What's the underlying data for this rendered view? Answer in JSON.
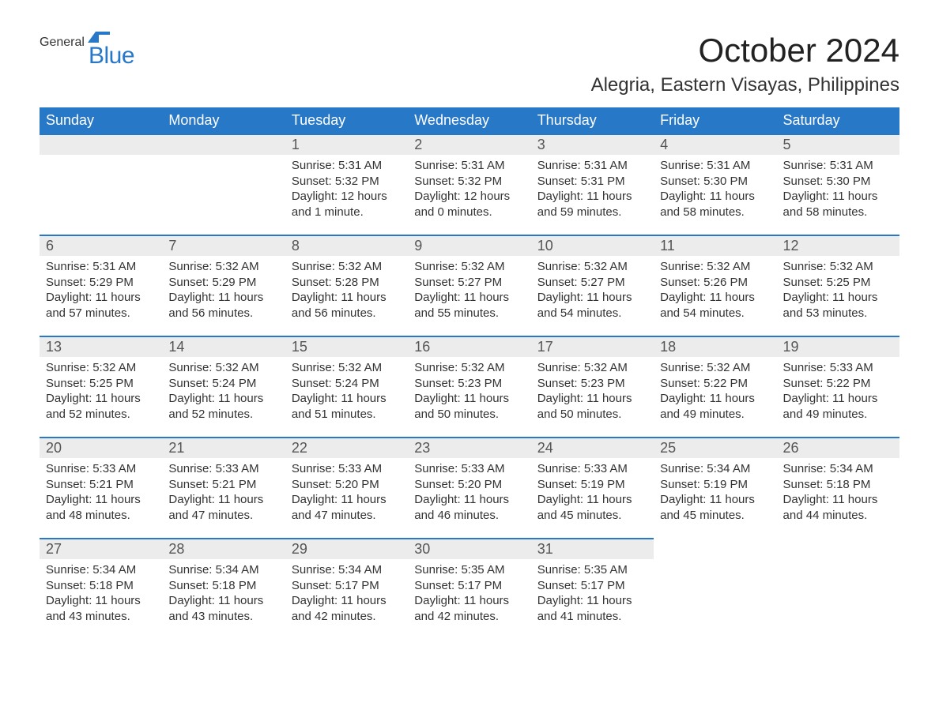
{
  "logo": {
    "line1": "General",
    "line2": "Blue",
    "flag_color": "#2878c8"
  },
  "title": "October 2024",
  "subtitle": "Alegria, Eastern Visayas, Philippines",
  "colors": {
    "header_bg": "#2878c8",
    "header_text": "#ffffff",
    "daynum_bg": "#ececec",
    "daynum_border": "#2878c8",
    "body_text": "#333333",
    "page_bg": "#ffffff"
  },
  "day_headers": [
    "Sunday",
    "Monday",
    "Tuesday",
    "Wednesday",
    "Thursday",
    "Friday",
    "Saturday"
  ],
  "weeks": [
    [
      {
        "blank": true
      },
      {
        "blank": true
      },
      {
        "num": "1",
        "sunrise": "Sunrise: 5:31 AM",
        "sunset": "Sunset: 5:32 PM",
        "daylight1": "Daylight: 12 hours",
        "daylight2": "and 1 minute."
      },
      {
        "num": "2",
        "sunrise": "Sunrise: 5:31 AM",
        "sunset": "Sunset: 5:32 PM",
        "daylight1": "Daylight: 12 hours",
        "daylight2": "and 0 minutes."
      },
      {
        "num": "3",
        "sunrise": "Sunrise: 5:31 AM",
        "sunset": "Sunset: 5:31 PM",
        "daylight1": "Daylight: 11 hours",
        "daylight2": "and 59 minutes."
      },
      {
        "num": "4",
        "sunrise": "Sunrise: 5:31 AM",
        "sunset": "Sunset: 5:30 PM",
        "daylight1": "Daylight: 11 hours",
        "daylight2": "and 58 minutes."
      },
      {
        "num": "5",
        "sunrise": "Sunrise: 5:31 AM",
        "sunset": "Sunset: 5:30 PM",
        "daylight1": "Daylight: 11 hours",
        "daylight2": "and 58 minutes."
      }
    ],
    [
      {
        "num": "6",
        "sunrise": "Sunrise: 5:31 AM",
        "sunset": "Sunset: 5:29 PM",
        "daylight1": "Daylight: 11 hours",
        "daylight2": "and 57 minutes."
      },
      {
        "num": "7",
        "sunrise": "Sunrise: 5:32 AM",
        "sunset": "Sunset: 5:29 PM",
        "daylight1": "Daylight: 11 hours",
        "daylight2": "and 56 minutes."
      },
      {
        "num": "8",
        "sunrise": "Sunrise: 5:32 AM",
        "sunset": "Sunset: 5:28 PM",
        "daylight1": "Daylight: 11 hours",
        "daylight2": "and 56 minutes."
      },
      {
        "num": "9",
        "sunrise": "Sunrise: 5:32 AM",
        "sunset": "Sunset: 5:27 PM",
        "daylight1": "Daylight: 11 hours",
        "daylight2": "and 55 minutes."
      },
      {
        "num": "10",
        "sunrise": "Sunrise: 5:32 AM",
        "sunset": "Sunset: 5:27 PM",
        "daylight1": "Daylight: 11 hours",
        "daylight2": "and 54 minutes."
      },
      {
        "num": "11",
        "sunrise": "Sunrise: 5:32 AM",
        "sunset": "Sunset: 5:26 PM",
        "daylight1": "Daylight: 11 hours",
        "daylight2": "and 54 minutes."
      },
      {
        "num": "12",
        "sunrise": "Sunrise: 5:32 AM",
        "sunset": "Sunset: 5:25 PM",
        "daylight1": "Daylight: 11 hours",
        "daylight2": "and 53 minutes."
      }
    ],
    [
      {
        "num": "13",
        "sunrise": "Sunrise: 5:32 AM",
        "sunset": "Sunset: 5:25 PM",
        "daylight1": "Daylight: 11 hours",
        "daylight2": "and 52 minutes."
      },
      {
        "num": "14",
        "sunrise": "Sunrise: 5:32 AM",
        "sunset": "Sunset: 5:24 PM",
        "daylight1": "Daylight: 11 hours",
        "daylight2": "and 52 minutes."
      },
      {
        "num": "15",
        "sunrise": "Sunrise: 5:32 AM",
        "sunset": "Sunset: 5:24 PM",
        "daylight1": "Daylight: 11 hours",
        "daylight2": "and 51 minutes."
      },
      {
        "num": "16",
        "sunrise": "Sunrise: 5:32 AM",
        "sunset": "Sunset: 5:23 PM",
        "daylight1": "Daylight: 11 hours",
        "daylight2": "and 50 minutes."
      },
      {
        "num": "17",
        "sunrise": "Sunrise: 5:32 AM",
        "sunset": "Sunset: 5:23 PM",
        "daylight1": "Daylight: 11 hours",
        "daylight2": "and 50 minutes."
      },
      {
        "num": "18",
        "sunrise": "Sunrise: 5:32 AM",
        "sunset": "Sunset: 5:22 PM",
        "daylight1": "Daylight: 11 hours",
        "daylight2": "and 49 minutes."
      },
      {
        "num": "19",
        "sunrise": "Sunrise: 5:33 AM",
        "sunset": "Sunset: 5:22 PM",
        "daylight1": "Daylight: 11 hours",
        "daylight2": "and 49 minutes."
      }
    ],
    [
      {
        "num": "20",
        "sunrise": "Sunrise: 5:33 AM",
        "sunset": "Sunset: 5:21 PM",
        "daylight1": "Daylight: 11 hours",
        "daylight2": "and 48 minutes."
      },
      {
        "num": "21",
        "sunrise": "Sunrise: 5:33 AM",
        "sunset": "Sunset: 5:21 PM",
        "daylight1": "Daylight: 11 hours",
        "daylight2": "and 47 minutes."
      },
      {
        "num": "22",
        "sunrise": "Sunrise: 5:33 AM",
        "sunset": "Sunset: 5:20 PM",
        "daylight1": "Daylight: 11 hours",
        "daylight2": "and 47 minutes."
      },
      {
        "num": "23",
        "sunrise": "Sunrise: 5:33 AM",
        "sunset": "Sunset: 5:20 PM",
        "daylight1": "Daylight: 11 hours",
        "daylight2": "and 46 minutes."
      },
      {
        "num": "24",
        "sunrise": "Sunrise: 5:33 AM",
        "sunset": "Sunset: 5:19 PM",
        "daylight1": "Daylight: 11 hours",
        "daylight2": "and 45 minutes."
      },
      {
        "num": "25",
        "sunrise": "Sunrise: 5:34 AM",
        "sunset": "Sunset: 5:19 PM",
        "daylight1": "Daylight: 11 hours",
        "daylight2": "and 45 minutes."
      },
      {
        "num": "26",
        "sunrise": "Sunrise: 5:34 AM",
        "sunset": "Sunset: 5:18 PM",
        "daylight1": "Daylight: 11 hours",
        "daylight2": "and 44 minutes."
      }
    ],
    [
      {
        "num": "27",
        "sunrise": "Sunrise: 5:34 AM",
        "sunset": "Sunset: 5:18 PM",
        "daylight1": "Daylight: 11 hours",
        "daylight2": "and 43 minutes."
      },
      {
        "num": "28",
        "sunrise": "Sunrise: 5:34 AM",
        "sunset": "Sunset: 5:18 PM",
        "daylight1": "Daylight: 11 hours",
        "daylight2": "and 43 minutes."
      },
      {
        "num": "29",
        "sunrise": "Sunrise: 5:34 AM",
        "sunset": "Sunset: 5:17 PM",
        "daylight1": "Daylight: 11 hours",
        "daylight2": "and 42 minutes."
      },
      {
        "num": "30",
        "sunrise": "Sunrise: 5:35 AM",
        "sunset": "Sunset: 5:17 PM",
        "daylight1": "Daylight: 11 hours",
        "daylight2": "and 42 minutes."
      },
      {
        "num": "31",
        "sunrise": "Sunrise: 5:35 AM",
        "sunset": "Sunset: 5:17 PM",
        "daylight1": "Daylight: 11 hours",
        "daylight2": "and 41 minutes."
      },
      {
        "blank": true
      },
      {
        "blank": true
      }
    ]
  ]
}
